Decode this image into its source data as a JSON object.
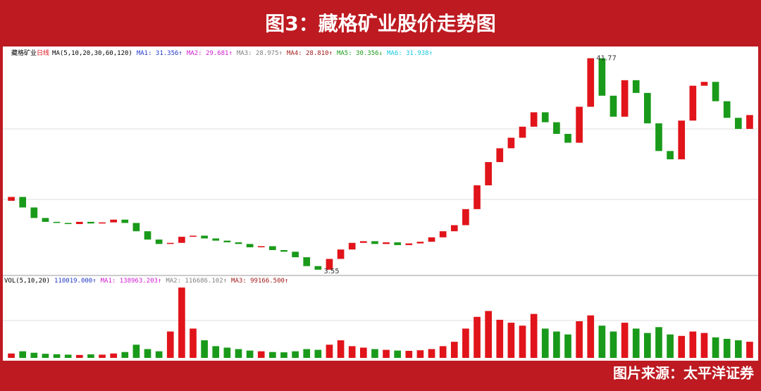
{
  "chart_data": {
    "type": "candlestick",
    "title": "图3：藏格矿业股价走势图",
    "source": "图片来源：太平洋证券",
    "legend": {
      "name": "藏格矿业",
      "period": "日线",
      "ma_params": "MA(5,10,20,30,60,120)",
      "items": [
        {
          "label": "MA1: 31.356↑",
          "color": "#2038c8"
        },
        {
          "label": "MA2: 29.681↑",
          "color": "#d01ad0"
        },
        {
          "label": "MA3: 28.975↑",
          "color": "#808080"
        },
        {
          "label": "MA4: 28.810↑",
          "color": "#a01818"
        },
        {
          "label": "MA5: 30.356↓",
          "color": "#1a9a1a"
        },
        {
          "label": "MA6: 31.938↑",
          "color": "#19c8e0"
        }
      ]
    },
    "volume_legend": {
      "name": "VOL(5,10,20)",
      "items": [
        {
          "label": "110019.000↑",
          "color": "#2038c8"
        },
        {
          "label": "MA1: 138963.203↑",
          "color": "#d01ad0"
        },
        {
          "label": "MA2: 116686.102↑",
          "color": "#808080"
        },
        {
          "label": "MA3: 99166.500↑",
          "color": "#a01818"
        }
      ]
    },
    "high": 41.77,
    "low": 3.55,
    "up_color": "#e0141a",
    "down_color": "#1a9a1a",
    "ylim": [
      2,
      43
    ],
    "vol_ylim": [
      0,
      500000
    ],
    "open": [
      16.0,
      16.7,
      14.8,
      12.9,
      12.2,
      12.0,
      11.8,
      12.2,
      11.9,
      12.1,
      12.6,
      12.0,
      10.5,
      9.0,
      8.2,
      8.4,
      9.5,
      9.7,
      9.2,
      8.8,
      8.5,
      8.2,
      7.6,
      7.8,
      7.1,
      6.8,
      5.8,
      4.2,
      3.55,
      5.5,
      7.2,
      8.4,
      8.7,
      8.2,
      8.5,
      8.0,
      8.3,
      8.6,
      9.4,
      10.5,
      11.6,
      14.5,
      18.8,
      23.0,
      25.5,
      27.4,
      29.4,
      32.0,
      30.2,
      28.1,
      26.5,
      33.0,
      41.77,
      35.0,
      31.2,
      37.8,
      35.5,
      30.0,
      25.0,
      23.5,
      30.5,
      36.8,
      37.5,
      34.0,
      31.0,
      29.0
    ],
    "close": [
      16.7,
      14.8,
      12.9,
      12.2,
      12.0,
      11.8,
      12.2,
      11.9,
      12.1,
      12.6,
      12.0,
      10.5,
      9.0,
      8.2,
      8.4,
      9.5,
      9.7,
      9.2,
      8.8,
      8.5,
      8.2,
      7.6,
      7.8,
      7.1,
      6.8,
      5.8,
      4.2,
      3.55,
      5.5,
      7.2,
      8.4,
      8.7,
      8.2,
      8.5,
      8.0,
      8.3,
      8.6,
      9.4,
      10.5,
      11.6,
      14.5,
      18.8,
      23.0,
      25.5,
      27.4,
      29.4,
      32.0,
      30.2,
      28.1,
      26.5,
      33.0,
      41.77,
      35.0,
      31.2,
      37.8,
      35.5,
      30.0,
      25.0,
      23.5,
      30.5,
      36.8,
      37.5,
      34.0,
      31.0,
      29.0,
      31.5
    ],
    "volume": [
      30000,
      45000,
      35000,
      28000,
      25000,
      22000,
      20000,
      24000,
      22000,
      30000,
      40000,
      90000,
      60000,
      45000,
      180000,
      480000,
      200000,
      120000,
      80000,
      70000,
      60000,
      50000,
      45000,
      40000,
      38000,
      45000,
      60000,
      55000,
      90000,
      120000,
      80000,
      70000,
      60000,
      55000,
      50000,
      48000,
      52000,
      60000,
      80000,
      110000,
      200000,
      280000,
      320000,
      260000,
      240000,
      220000,
      300000,
      200000,
      180000,
      160000,
      250000,
      290000,
      220000,
      180000,
      240000,
      200000,
      170000,
      210000,
      160000,
      150000,
      180000,
      170000,
      140000,
      130000,
      120000,
      110000
    ]
  }
}
